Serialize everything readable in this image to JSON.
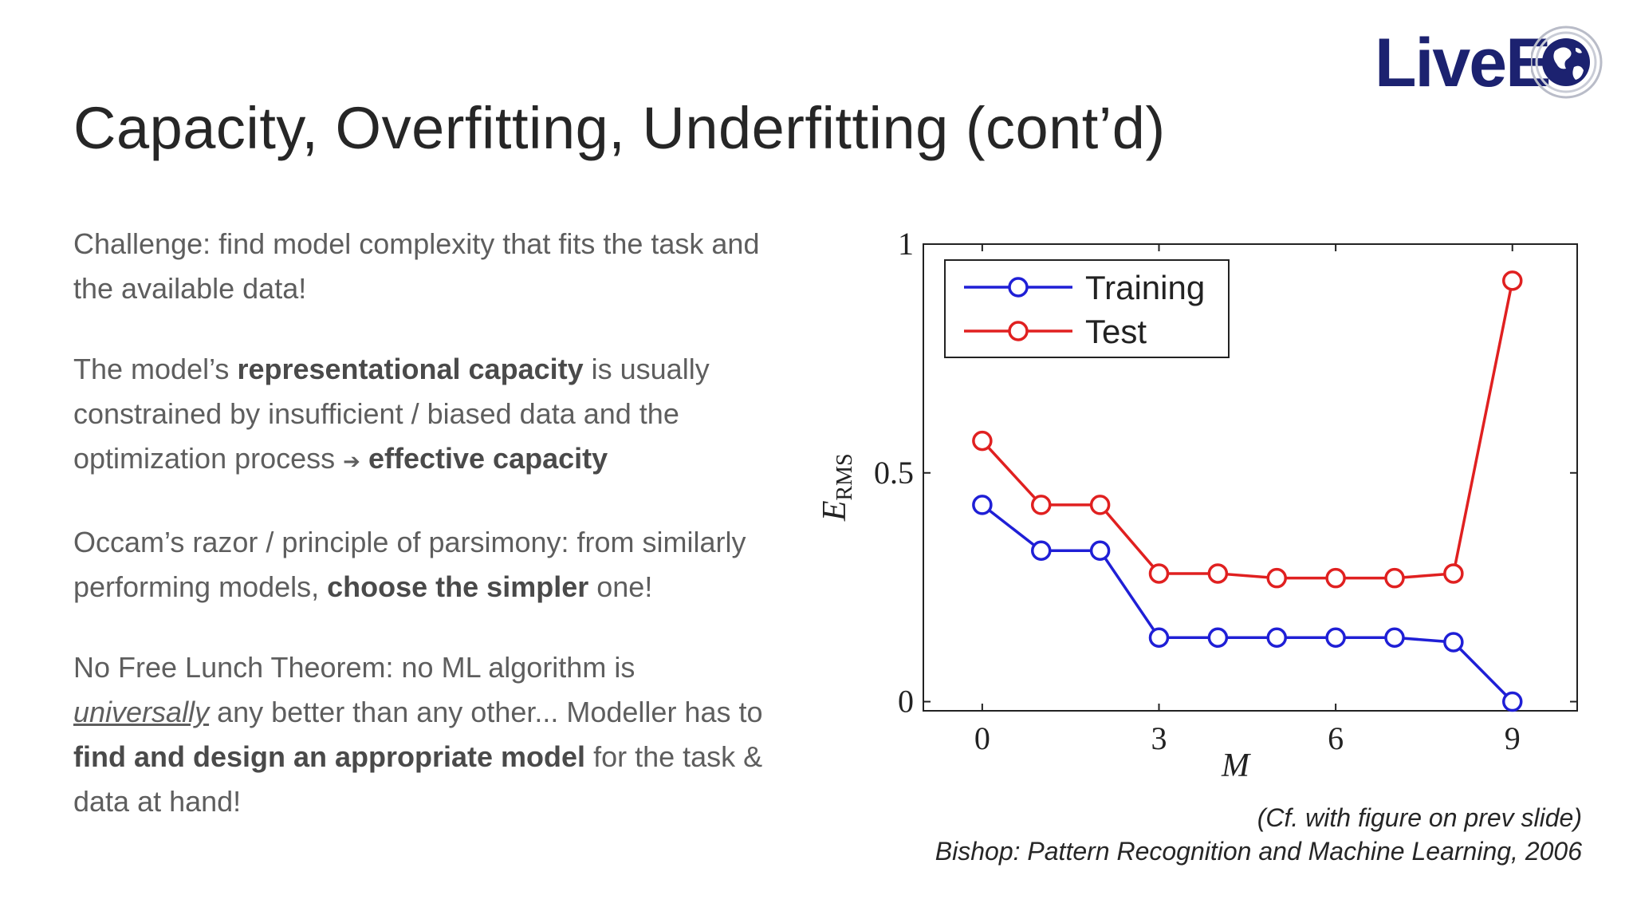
{
  "slide": {
    "title": "Capacity, Overfitting, Underfitting (cont’d)",
    "logo": {
      "text": "LiveEO",
      "visible_text": "LiveE"
    }
  },
  "body": {
    "p1": "Challenge: find model complexity that fits the task and the available data!",
    "p2": {
      "t1": "The model’s ",
      "b1": "representational capacity",
      "t2": " is usually constrained by insufficient / biased data and the optimization process ",
      "arrow": "➔",
      "b2": "effective capacity"
    },
    "p3": {
      "t1": "Occam’s razor / principle of parsimony: from similarly performing models, ",
      "b1": "choose the simpler",
      "t2": " one!"
    },
    "p4": {
      "t1": "No Free Lunch Theorem: no ML algorithm is ",
      "u1": "universally",
      "t2": " any better than any other... Modeller has to ",
      "b1": "find and design an appropriate model",
      "t3": " for the task & data at hand!"
    }
  },
  "caption": {
    "line1": "(Cf. with figure on prev slide)",
    "line2": "Bishop: Pattern Recognition and Machine Learning, 2006"
  },
  "chart_data": {
    "type": "line",
    "x": [
      0,
      1,
      2,
      3,
      4,
      5,
      6,
      7,
      8,
      9
    ],
    "series": [
      {
        "name": "Training",
        "color": "#1f1fd6",
        "values": [
          0.43,
          0.33,
          0.33,
          0.14,
          0.14,
          0.14,
          0.14,
          0.14,
          0.13,
          0.0
        ]
      },
      {
        "name": "Test",
        "color": "#e02020",
        "values": [
          0.57,
          0.43,
          0.43,
          0.28,
          0.28,
          0.27,
          0.27,
          0.27,
          0.28,
          0.92
        ]
      }
    ],
    "xlabel": "M",
    "ylabel": "E",
    "ylabel_sub": "RMS",
    "xlim": [
      -1,
      10.1
    ],
    "ylim": [
      -0.02,
      1
    ],
    "xticks": [
      0,
      3,
      6,
      9
    ],
    "yticks": [
      0,
      0.5,
      1
    ],
    "xtick_labels": [
      "0",
      "3",
      "6",
      "9"
    ],
    "ytick_labels": [
      "0",
      "0.5",
      "1"
    ],
    "grid": false,
    "legend": "top-left",
    "marker": "open-circle"
  }
}
